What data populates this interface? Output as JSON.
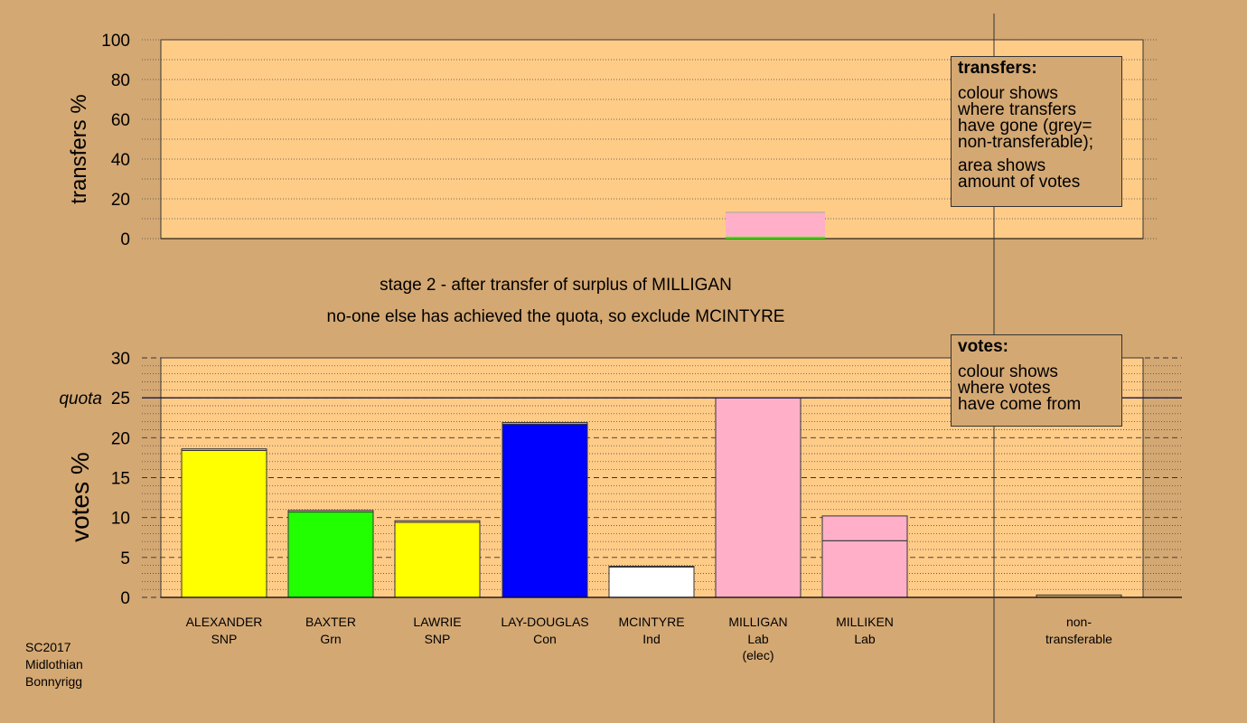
{
  "chart_data": [
    {
      "type": "bar",
      "panel": "transfers",
      "ylabel": "transfers %",
      "ylim": [
        0,
        100
      ],
      "yticks": [
        0,
        20,
        40,
        60,
        80,
        100
      ],
      "grid": true,
      "categories": [
        "ALEXANDER",
        "BAXTER",
        "LAWRIE",
        "LAY-DOUGLAS",
        "MCINTYRE",
        "MILLIGAN",
        "MILLIKEN"
      ],
      "bars": [
        {
          "category": "MILLIGAN",
          "segments": [
            {
              "from": "green (Grn)",
              "value": 1.0,
              "color": "#22ff00"
            },
            {
              "from": "pink (Lab)",
              "value": 12.0,
              "color": "#ffb0c8"
            },
            {
              "from": "grey (non-transferable)",
              "value": 0.4,
              "color": "#a0a0a0"
            }
          ]
        }
      ]
    },
    {
      "type": "bar",
      "panel": "votes",
      "ylabel": "votes %",
      "ylim": [
        0,
        30
      ],
      "yticks": [
        0,
        5,
        10,
        15,
        20,
        25,
        30
      ],
      "quota": 25,
      "quota_label": "quota",
      "grid": true,
      "categories": [
        "ALEXANDER",
        "BAXTER",
        "LAWRIE",
        "LAY-DOUGLAS",
        "MCINTYRE",
        "MILLIGAN",
        "MILLIKEN",
        "non-transferable"
      ],
      "parties": [
        "SNP",
        "Grn",
        "SNP",
        "Con",
        "Ind",
        "Lab",
        "Lab",
        ""
      ],
      "notes": [
        "",
        "",
        "",
        "",
        "",
        "(elec)",
        "",
        ""
      ],
      "bars": [
        {
          "category": "ALEXANDER",
          "segments": [
            {
              "value": 18.4,
              "color": "#ffff00"
            },
            {
              "value": 0.2,
              "color": "#ffb0c8"
            }
          ]
        },
        {
          "category": "BAXTER",
          "segments": [
            {
              "value": 10.7,
              "color": "#22ff00"
            },
            {
              "value": 0.2,
              "color": "#ffb0c8"
            }
          ]
        },
        {
          "category": "LAWRIE",
          "segments": [
            {
              "value": 9.4,
              "color": "#ffff00"
            },
            {
              "value": 0.2,
              "color": "#ffb0c8"
            }
          ]
        },
        {
          "category": "LAY-DOUGLAS",
          "segments": [
            {
              "value": 21.7,
              "color": "#0000ff"
            },
            {
              "value": 0.2,
              "color": "#ffb0c8"
            }
          ]
        },
        {
          "category": "MCINTYRE",
          "segments": [
            {
              "value": 3.8,
              "color": "#ffffff"
            },
            {
              "value": 0.1,
              "color": "#ffb0c8"
            }
          ]
        },
        {
          "category": "MILLIGAN",
          "segments": [
            {
              "value": 25.0,
              "color": "#ffb0c8"
            }
          ]
        },
        {
          "category": "MILLIKEN",
          "segments": [
            {
              "value": 7.1,
              "color": "#ffb0c8"
            },
            {
              "value": 3.1,
              "color": "#ffb0c8"
            }
          ]
        },
        {
          "category": "non-transferable",
          "segments": [
            {
              "value": 0.3,
              "color": "#d4a873"
            }
          ]
        }
      ]
    }
  ],
  "stage": {
    "line1": "stage 2 - after transfer of surplus of MILLIGAN",
    "line2": "no-one else has achieved the quota, so exclude MCINTYRE"
  },
  "legend_transfers": {
    "title": "transfers:",
    "lines": [
      "colour shows",
      "where transfers",
      "have gone (grey=",
      "non-transferable);"
    ],
    "lines2": [
      "area shows",
      "amount of votes"
    ]
  },
  "legend_votes": {
    "title": "votes:",
    "lines": [
      "colour shows",
      "where votes",
      "have come from"
    ]
  },
  "caption": [
    "SC2017",
    "Midlothian",
    "Bonnyrigg"
  ],
  "colors": {
    "background": "#d4a873",
    "plot_area": "#ffcc88"
  }
}
